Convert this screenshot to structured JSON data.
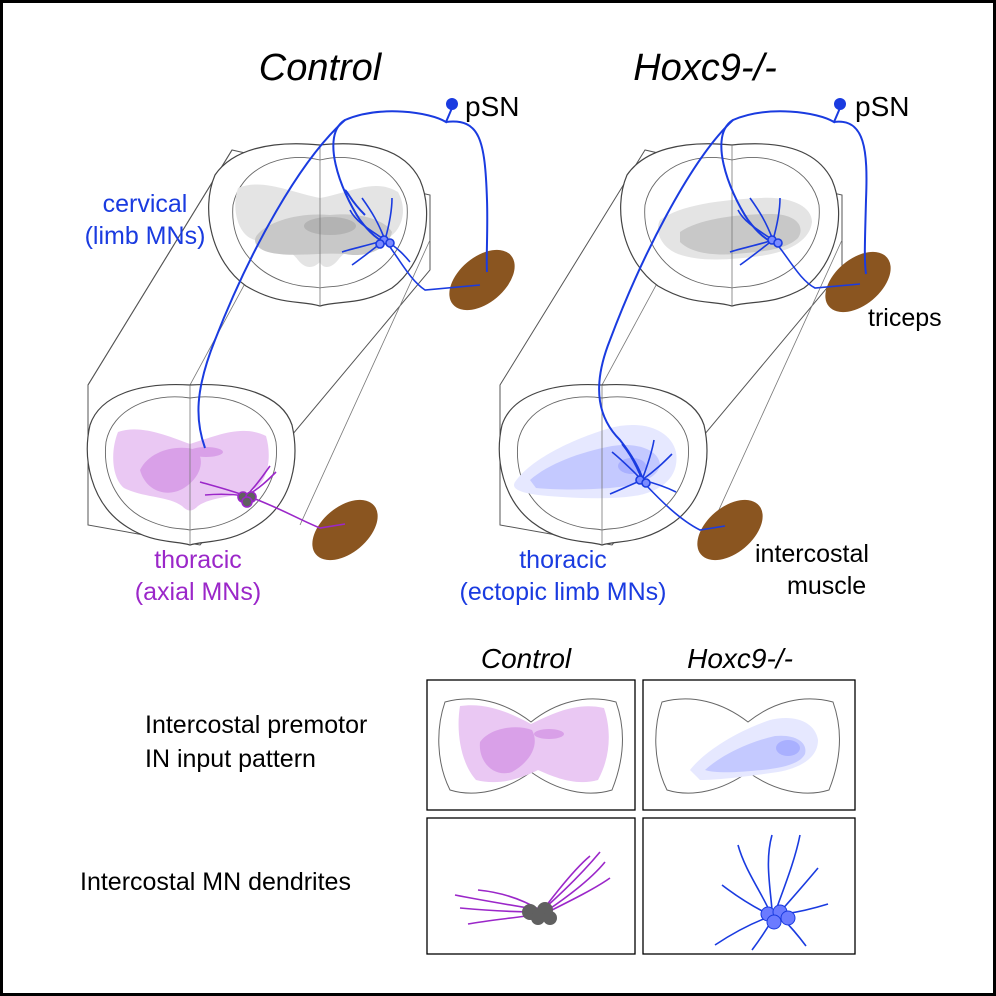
{
  "panels": {
    "control": {
      "title": "Control"
    },
    "mutant": {
      "title": "Hoxc9-/-"
    }
  },
  "labels": {
    "psn_left": "pSN",
    "psn_right": "pSN",
    "cervical_line1": "cervical",
    "cervical_line2": "(limb MNs)",
    "thoracic_left_line1": "thoracic",
    "thoracic_left_line2": "(axial MNs)",
    "thoracic_right_line1": "thoracic",
    "thoracic_right_line2": "(ectopic limb MNs)",
    "triceps": "triceps",
    "intercostal_line1": "intercostal",
    "intercostal_line2": "muscle"
  },
  "summary": {
    "col_control": "Control",
    "col_mutant": "Hoxc9-/-",
    "row1_line1": "Intercostal premotor",
    "row1_line2": "IN input pattern",
    "row2": "Intercostal MN dendrites"
  },
  "colors": {
    "blue": "#1a3be0",
    "purple": "#9b27c9",
    "muscle": "#8a5520",
    "pink_light": "#eac8f3",
    "pink_mid": "#d9a0e8",
    "blue_light": "#e6e8ff",
    "blue_mid": "#c4c9ff",
    "grey_light": "#e4e4e4",
    "grey_mid": "#bdbdbd"
  }
}
